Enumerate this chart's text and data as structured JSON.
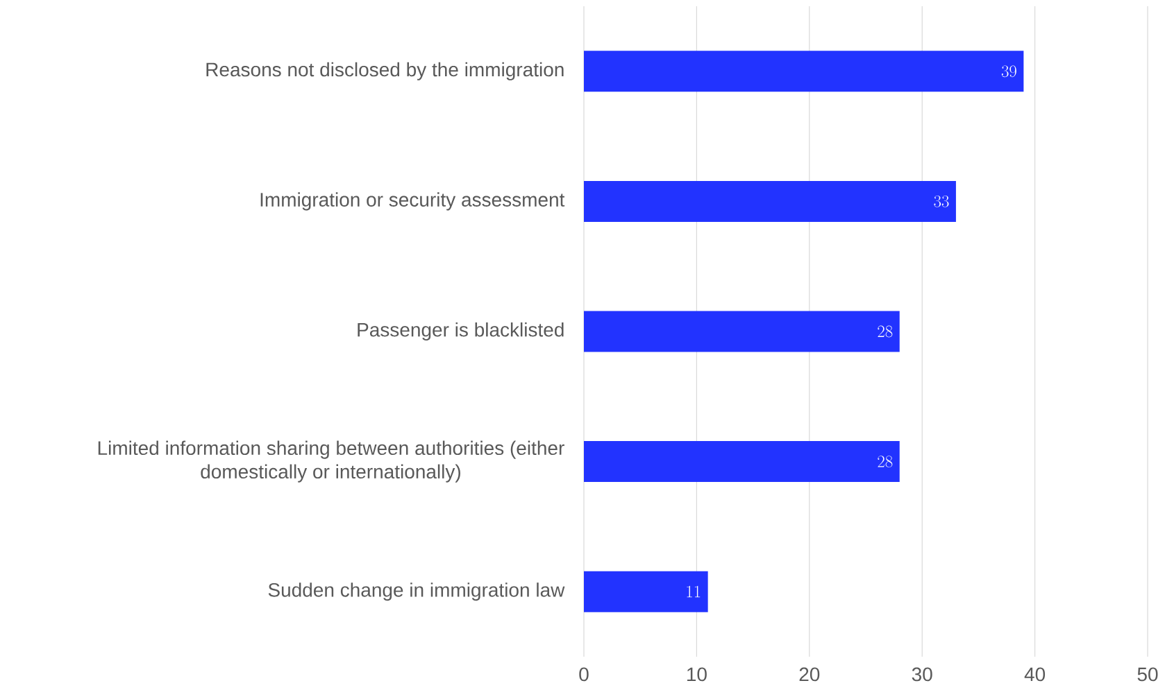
{
  "chart_data": {
    "type": "bar",
    "orientation": "horizontal",
    "categories": [
      "Reasons not disclosed by the immigration",
      "Immigration or security assessment",
      "Passenger is blacklisted",
      "Limited information sharing between authorities (either domestically or internationally)",
      "Sudden change in immigration law"
    ],
    "values": [
      39,
      33,
      28,
      28,
      11
    ],
    "color": "#2233ff",
    "xlim": [
      0,
      50
    ],
    "xticks": [
      0,
      10,
      20,
      30,
      40,
      50
    ],
    "grid": "x",
    "data_labels": true
  }
}
